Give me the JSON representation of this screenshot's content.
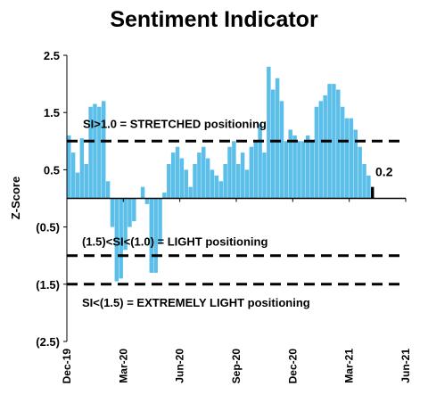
{
  "chart_data": {
    "type": "bar",
    "title": "Sentiment Indicator",
    "y_label": "Z-Score",
    "categories": [
      "Dec-19",
      null,
      null,
      null,
      null,
      null,
      null,
      null,
      null,
      null,
      null,
      null,
      null,
      "Mar-20",
      null,
      null,
      null,
      null,
      null,
      null,
      null,
      null,
      null,
      null,
      null,
      null,
      "Jun-20",
      null,
      null,
      null,
      null,
      null,
      null,
      null,
      null,
      null,
      null,
      null,
      null,
      "Sep-20",
      null,
      null,
      null,
      null,
      null,
      null,
      null,
      null,
      null,
      null,
      null,
      null,
      "Dec-20",
      null,
      null,
      null,
      null,
      null,
      null,
      null,
      null,
      null,
      null,
      null,
      null,
      "Mar-21",
      null,
      null,
      null,
      null,
      null,
      null,
      null,
      null,
      null,
      null,
      null,
      null,
      "Jun-21"
    ],
    "values": [
      1.1,
      0.8,
      0.45,
      1.05,
      0.6,
      1.6,
      1.65,
      1.6,
      1.7,
      0.3,
      -0.5,
      -1.45,
      -1.4,
      -0.9,
      -0.5,
      -0.4,
      0.0,
      0.2,
      -0.1,
      -1.3,
      -1.3,
      -0.8,
      0.1,
      0.6,
      0.8,
      0.9,
      0.7,
      0.5,
      0.2,
      0.6,
      0.8,
      0.9,
      0.7,
      0.5,
      0.4,
      0.3,
      0.6,
      0.9,
      1.0,
      0.6,
      0.8,
      0.5,
      0.9,
      1.0,
      1.3,
      0.8,
      2.3,
      1.9,
      2.1,
      1.7,
      1.0,
      1.2,
      1.1,
      1.0,
      1.0,
      1.1,
      1.0,
      1.6,
      1.7,
      1.8,
      2.0,
      2.0,
      1.9,
      1.6,
      1.4,
      1.4,
      1.2,
      0.9,
      0.6,
      0.4,
      0.2,
      null,
      null,
      null,
      null,
      null,
      null,
      null,
      null
    ],
    "color": "#5bbfea",
    "highlight_color": "#000000",
    "ylim": [
      -2.5,
      2.5
    ],
    "yticks": [
      2.5,
      1.5,
      0.5,
      {
        "value": -0.5,
        "label": "(0.5)"
      },
      {
        "value": -1.5,
        "label": "(1.5)"
      },
      {
        "value": -2.5,
        "label": "(2.5)"
      }
    ],
    "reference_lines": [
      {
        "value": 1.0,
        "label": "SI>1.0 = STRETCHED positioning"
      },
      {
        "value": -1.0,
        "label": "(1.5)<SI<(1.0) = LIGHT positioning"
      },
      {
        "value": -1.5,
        "label": "SI<(1.5) = EXTREMELY LIGHT positioning"
      }
    ]
  }
}
